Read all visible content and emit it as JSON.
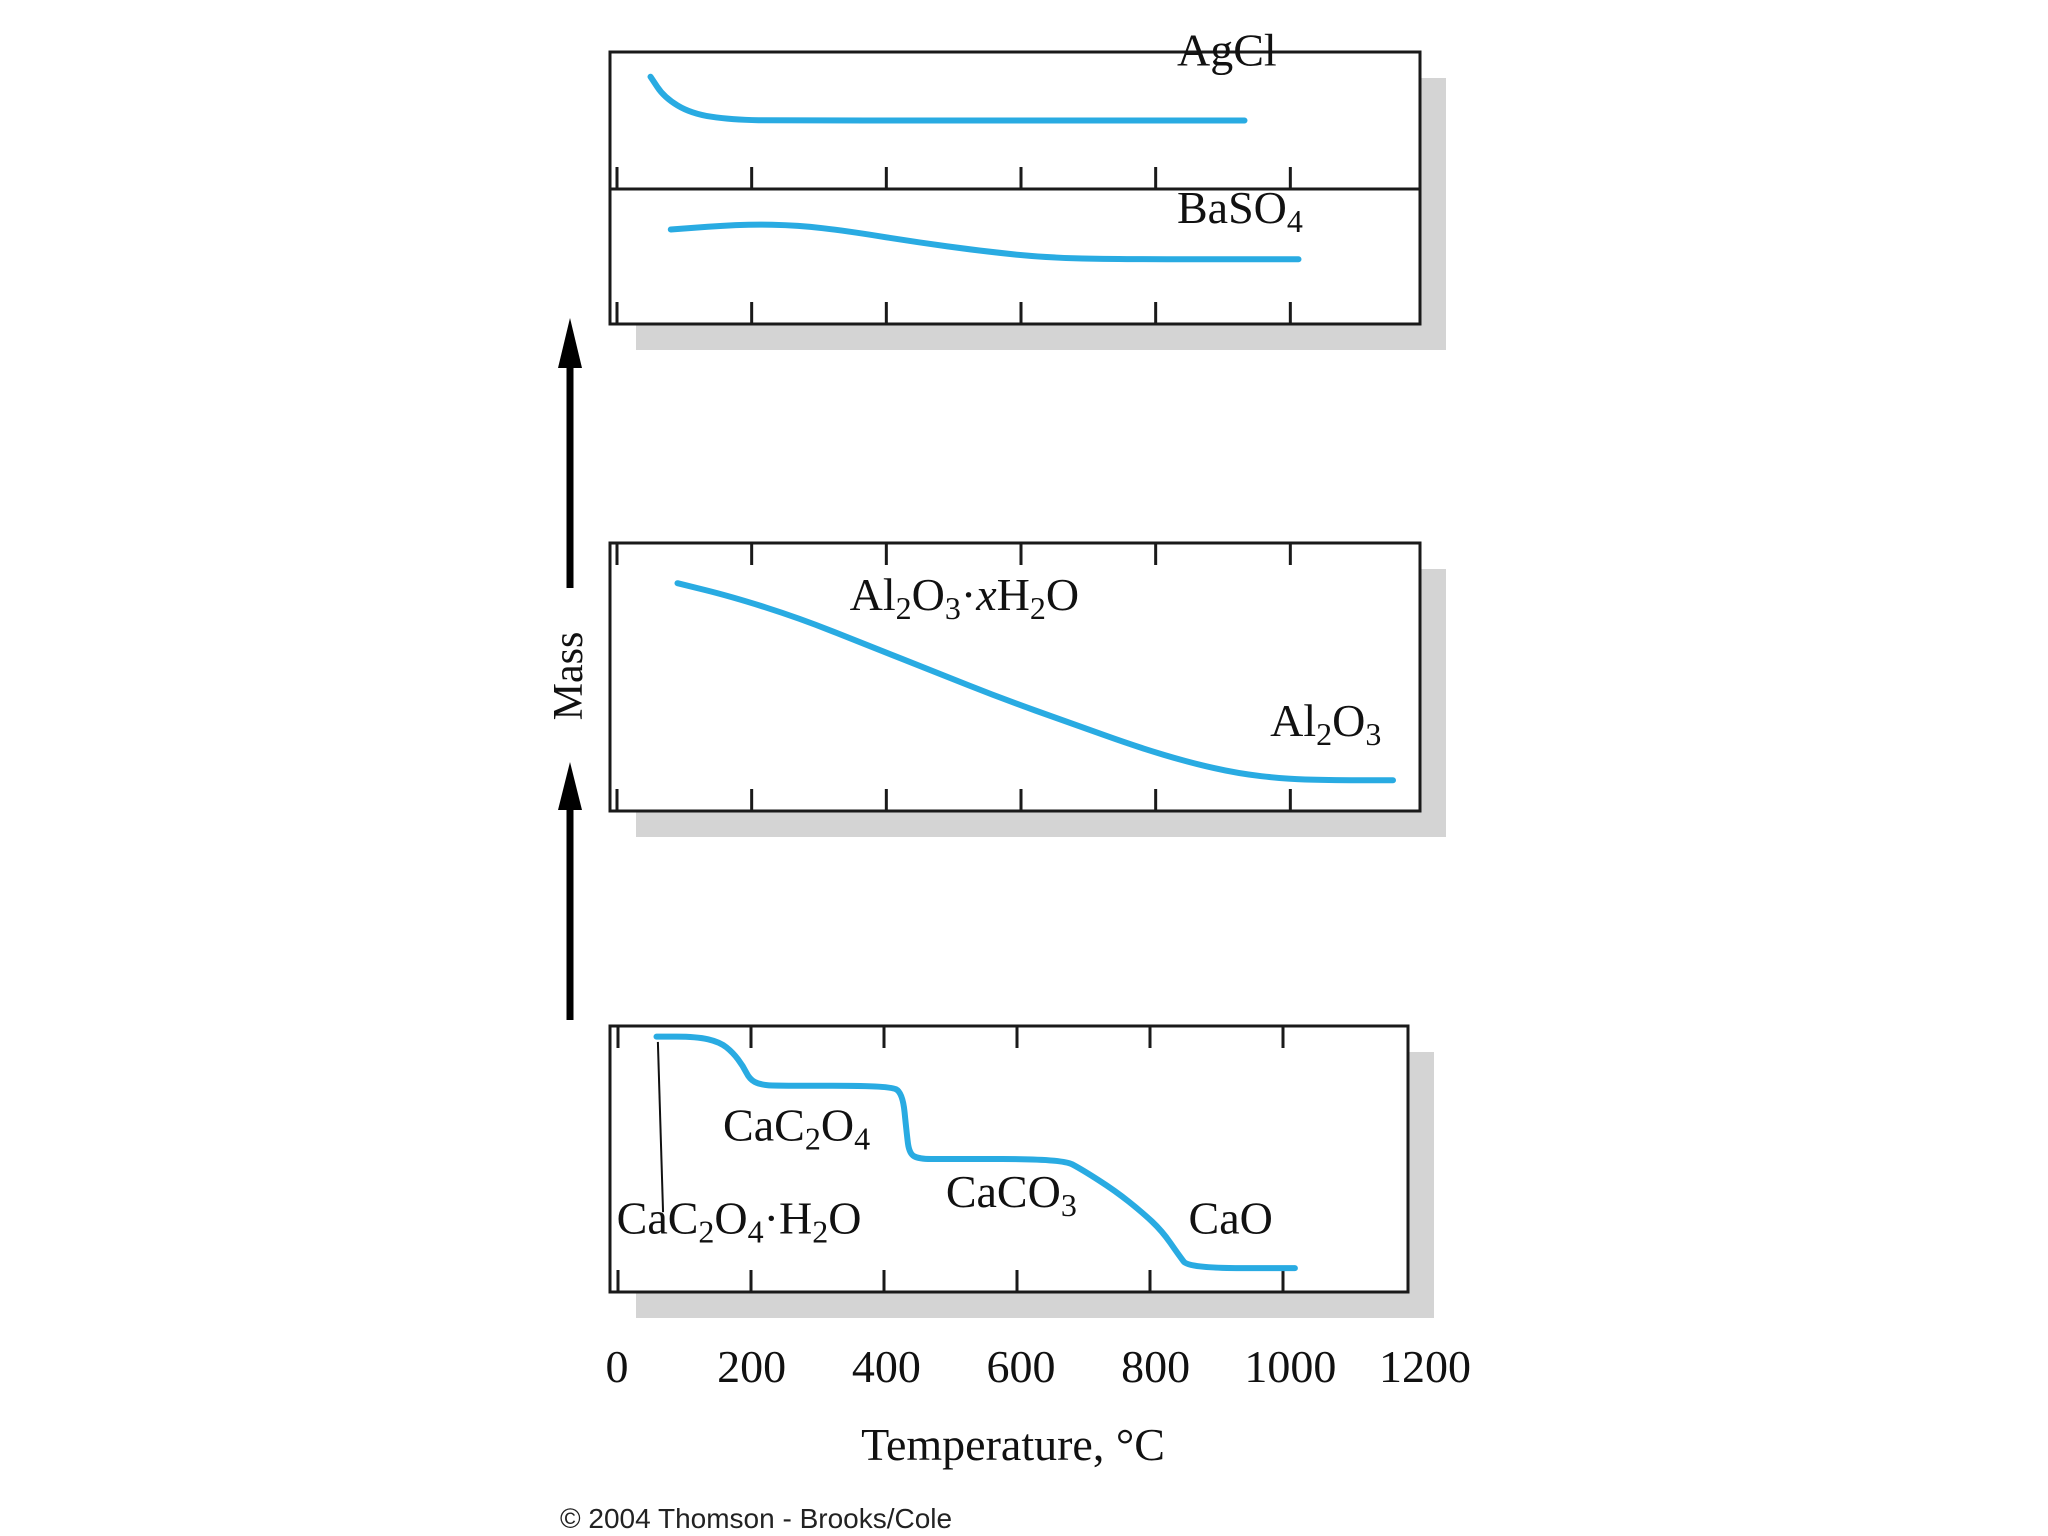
{
  "chart_data": {
    "type": "line",
    "xlabel": "Temperature, °C",
    "ylabel": "Mass",
    "xlim": [
      0,
      1200
    ],
    "x_ticks": [
      "0",
      "200",
      "400",
      "600",
      "800",
      "1000",
      "1200"
    ],
    "copyright": "© 2004 Thomson - Brooks/Cole",
    "colors": {
      "curve": "#29ABE2",
      "frame": "#1a1a1a",
      "shadow": "#d4d4d4",
      "text": "#111111"
    },
    "panels": [
      {
        "id": "agcl",
        "y_range": [
          0,
          1
        ],
        "points": [
          [
            60,
            0.82
          ],
          [
            80,
            0.67
          ],
          [
            120,
            0.55
          ],
          [
            180,
            0.505
          ],
          [
            260,
            0.5
          ],
          [
            500,
            0.5
          ],
          [
            700,
            0.5
          ],
          [
            940,
            0.5
          ]
        ],
        "labels": [
          {
            "parts": [
              {
                "t": "AgCl"
              }
            ],
            "x": 840,
            "y": 0.9
          }
        ]
      },
      {
        "id": "baso4",
        "y_range": [
          0,
          1
        ],
        "points": [
          [
            90,
            0.7
          ],
          [
            200,
            0.74
          ],
          [
            280,
            0.73
          ],
          [
            350,
            0.69
          ],
          [
            450,
            0.61
          ],
          [
            550,
            0.54
          ],
          [
            650,
            0.49
          ],
          [
            750,
            0.48
          ],
          [
            900,
            0.48
          ],
          [
            1020,
            0.48
          ]
        ],
        "labels": [
          {
            "parts": [
              {
                "t": "BaSO"
              },
              {
                "t": "4",
                "sub": true
              }
            ],
            "x": 840,
            "y": 0.75
          }
        ]
      },
      {
        "id": "al2o3",
        "y_range": [
          0,
          1
        ],
        "points": [
          [
            100,
            0.85
          ],
          [
            180,
            0.8
          ],
          [
            280,
            0.72
          ],
          [
            380,
            0.62
          ],
          [
            480,
            0.52
          ],
          [
            580,
            0.42
          ],
          [
            680,
            0.33
          ],
          [
            780,
            0.24
          ],
          [
            860,
            0.18
          ],
          [
            930,
            0.14
          ],
          [
            1000,
            0.12
          ],
          [
            1060,
            0.115
          ],
          [
            1160,
            0.115
          ]
        ],
        "labels": [
          {
            "parts": [
              {
                "t": "Al"
              },
              {
                "t": "2",
                "sub": true
              },
              {
                "t": "O"
              },
              {
                "t": "3",
                "sub": true
              },
              {
                "t": "·"
              },
              {
                "t": "x",
                "italic": true
              },
              {
                "t": "H"
              },
              {
                "t": "2",
                "sub": true
              },
              {
                "t": "O"
              }
            ],
            "x": 355,
            "y": 0.75
          },
          {
            "parts": [
              {
                "t": "Al"
              },
              {
                "t": "2",
                "sub": true
              },
              {
                "t": "O"
              },
              {
                "t": "3",
                "sub": true
              }
            ],
            "x": 978,
            "y": 0.28
          }
        ]
      },
      {
        "id": "cac2o4",
        "y_range": [
          0,
          1
        ],
        "points": [
          [
            70,
            0.96
          ],
          [
            130,
            0.96
          ],
          [
            165,
            0.94
          ],
          [
            185,
            0.9
          ],
          [
            200,
            0.85
          ],
          [
            210,
            0.8
          ],
          [
            225,
            0.78
          ],
          [
            250,
            0.775
          ],
          [
            420,
            0.775
          ],
          [
            440,
            0.75
          ],
          [
            446,
            0.6
          ],
          [
            450,
            0.52
          ],
          [
            465,
            0.5
          ],
          [
            500,
            0.5
          ],
          [
            680,
            0.5
          ],
          [
            710,
            0.46
          ],
          [
            760,
            0.38
          ],
          [
            800,
            0.3
          ],
          [
            830,
            0.23
          ],
          [
            855,
            0.14
          ],
          [
            870,
            0.09
          ],
          [
            1030,
            0.09
          ]
        ],
        "labels": [
          {
            "parts": [
              {
                "t": "CaC"
              },
              {
                "t": "2",
                "sub": true
              },
              {
                "t": "O"
              },
              {
                "t": "4",
                "sub": true
              }
            ],
            "x": 170,
            "y": 0.57
          },
          {
            "parts": [
              {
                "t": "CaC"
              },
              {
                "t": "2",
                "sub": true
              },
              {
                "t": "O"
              },
              {
                "t": "4",
                "sub": true
              },
              {
                "t": "·"
              },
              {
                "t": "H"
              },
              {
                "t": "2",
                "sub": true
              },
              {
                "t": "O"
              }
            ],
            "x": 10,
            "y": 0.22
          },
          {
            "parts": [
              {
                "t": "CaCO"
              },
              {
                "t": "3",
                "sub": true
              }
            ],
            "x": 505,
            "y": 0.32
          },
          {
            "parts": [
              {
                "t": "CaO"
              }
            ],
            "x": 870,
            "y": 0.22
          }
        ]
      }
    ]
  }
}
